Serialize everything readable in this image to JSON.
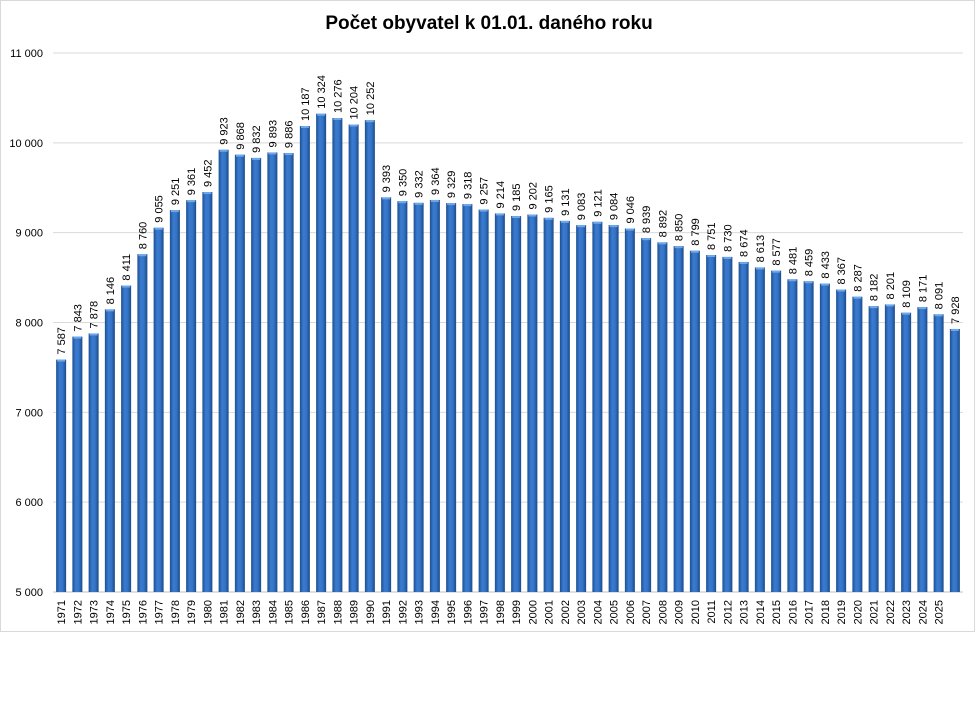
{
  "chart_data": {
    "type": "bar",
    "title": "Počet obyvatel k 01.01. daného roku",
    "xlabel": "",
    "ylabel": "",
    "ylim": [
      5000,
      11000
    ],
    "yticks": [
      5000,
      6000,
      7000,
      8000,
      9000,
      10000,
      11000
    ],
    "ytick_labels": [
      "5 000",
      "6 000",
      "7 000",
      "8 000",
      "9 000",
      "10 000",
      "11 000"
    ],
    "grid": true,
    "legend": "none",
    "bar_color": "#2e6bbd",
    "categories": [
      "1971",
      "1972",
      "1973",
      "1974",
      "1975",
      "1976",
      "1977",
      "1978",
      "1979",
      "1980",
      "1981",
      "1982",
      "1983",
      "1984",
      "1985",
      "1986",
      "1987",
      "1988",
      "1989",
      "1990",
      "1991",
      "1992",
      "1993",
      "1994",
      "1995",
      "1996",
      "1997",
      "1998",
      "1999",
      "2000",
      "2001",
      "2002",
      "2003",
      "2004",
      "2005",
      "2006",
      "2007",
      "2008",
      "2009",
      "2010",
      "2011",
      "2012",
      "2013",
      "2014",
      "2015",
      "2016",
      "2017",
      "2018",
      "2019",
      "2020",
      "2021",
      "2022",
      "2023",
      "2024",
      "2025",
      ""
    ],
    "values": [
      7587,
      7843,
      7878,
      8146,
      8411,
      8760,
      9055,
      9251,
      9361,
      9452,
      9923,
      9868,
      9832,
      9893,
      9886,
      10187,
      10324,
      10276,
      10204,
      10252,
      9393,
      9350,
      9332,
      9364,
      9329,
      9318,
      9257,
      9214,
      9185,
      9202,
      9165,
      9131,
      9083,
      9121,
      9084,
      9046,
      8939,
      8892,
      8850,
      8799,
      8751,
      8730,
      8674,
      8613,
      8577,
      8481,
      8459,
      8433,
      8367,
      8287,
      8182,
      8201,
      8109,
      8171,
      8091,
      7928
    ],
    "data_labels": [
      "7 587",
      "7 843",
      "7 878",
      "8 146",
      "8 411",
      "8 760",
      "9 055",
      "9 251",
      "9 361",
      "9 452",
      "9 923",
      "9 868",
      "9 832",
      "9 893",
      "9 886",
      "10 187",
      "10 324",
      "10 276",
      "10 204",
      "10 252",
      "9 393",
      "9 350",
      "9 332",
      "9 364",
      "9 329",
      "9 318",
      "9 257",
      "9 214",
      "9 185",
      "9 202",
      "9 165",
      "9 131",
      "9 083",
      "9 121",
      "9 084",
      "9 046",
      "8 939",
      "8 892",
      "8 850",
      "8 799",
      "8 751",
      "8 730",
      "8 674",
      "8 613",
      "8 577",
      "8 481",
      "8 459",
      "8 433",
      "8 367",
      "8 287",
      "8 182",
      "8 201",
      "8 109",
      "8 171",
      "8 091",
      "7 928"
    ]
  }
}
